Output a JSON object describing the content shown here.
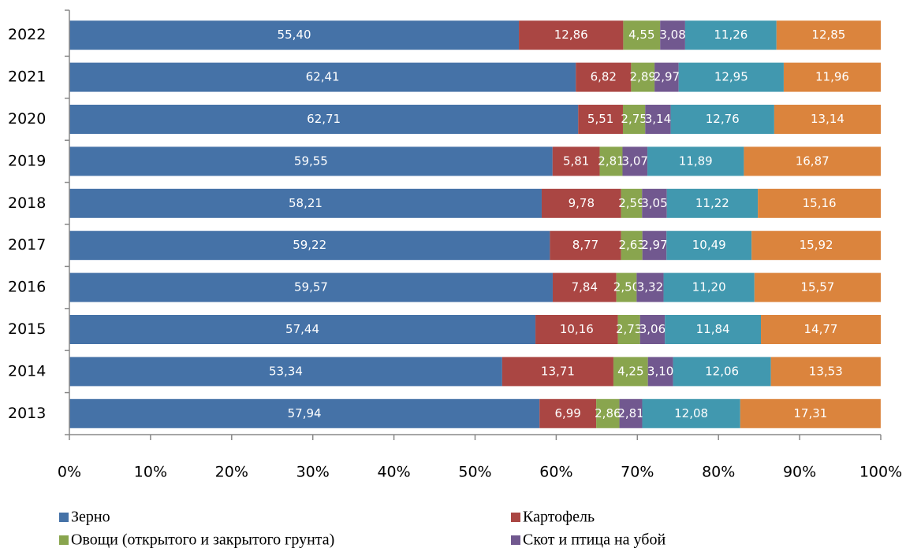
{
  "chart_data": {
    "type": "stacked_bar_horizontal",
    "categories": [
      "2022",
      "2021",
      "2020",
      "2019",
      "2018",
      "2017",
      "2016",
      "2015",
      "2014",
      "2013"
    ],
    "series": [
      {
        "name": "Зерно",
        "color": "#4572a7",
        "values": [
          55.4,
          62.41,
          62.71,
          59.55,
          58.21,
          59.22,
          59.57,
          57.44,
          53.34,
          57.94
        ],
        "value_labels": [
          "55,40",
          "62,41",
          "62,71",
          "59,55",
          "58,21",
          "59,22",
          "59,57",
          "57,44",
          "53,34",
          "57,94"
        ]
      },
      {
        "name": "Картофель",
        "color": "#aa4643",
        "values": [
          12.86,
          6.82,
          5.51,
          5.81,
          9.78,
          8.77,
          7.84,
          10.16,
          13.71,
          6.99
        ],
        "value_labels": [
          "12,86",
          "6,82",
          "5,51",
          "5,81",
          "9,78",
          "8,77",
          "7,84",
          "10,16",
          "13,71",
          "6,99"
        ]
      },
      {
        "name": "Овощи (открытого и закрытого грунта)",
        "color": "#89a54e",
        "values": [
          4.55,
          2.89,
          2.75,
          2.81,
          2.59,
          2.63,
          2.5,
          2.73,
          4.25,
          2.86
        ],
        "value_labels": [
          "4,55",
          "2,89",
          "2,75",
          "2,81",
          "2,59",
          "2,63",
          "2,50",
          "2,73",
          "4,25",
          "2,86"
        ]
      },
      {
        "name": "Скот и птица на убой",
        "color": "#71588f",
        "values": [
          3.08,
          2.97,
          3.14,
          3.07,
          3.05,
          2.97,
          3.32,
          3.06,
          3.1,
          2.81
        ],
        "value_labels": [
          "3,08",
          "2,97",
          "3,14",
          "3,07",
          "3,05",
          "2,97",
          "3,32",
          "3,06",
          "3,10",
          "2,81"
        ]
      },
      {
        "color": "#4198af",
        "values": [
          11.26,
          12.95,
          12.76,
          11.89,
          11.22,
          10.49,
          11.2,
          11.84,
          12.06,
          12.08
        ],
        "value_labels": [
          "11,26",
          "12,95",
          "12,76",
          "11,89",
          "11,22",
          "10,49",
          "11,20",
          "11,84",
          "12,06",
          "12,08"
        ]
      },
      {
        "color": "#db843d",
        "values": [
          12.85,
          11.96,
          13.14,
          16.87,
          15.16,
          15.92,
          15.57,
          14.77,
          13.53,
          17.31
        ],
        "value_labels": [
          "12,85",
          "11,96",
          "13,14",
          "16,87",
          "15,16",
          "15,92",
          "15,57",
          "14,77",
          "13,53",
          "17,31"
        ]
      }
    ],
    "xlim": [
      0,
      100
    ],
    "xticks": [
      {
        "value": 0,
        "label": "0%"
      },
      {
        "value": 10,
        "label": "10%"
      },
      {
        "value": 20,
        "label": "20%"
      },
      {
        "value": 30,
        "label": "30%"
      },
      {
        "value": 40,
        "label": "40%"
      },
      {
        "value": 50,
        "label": "50%"
      },
      {
        "value": 60,
        "label": "60%"
      },
      {
        "value": 70,
        "label": "70%"
      },
      {
        "value": 80,
        "label": "80%"
      },
      {
        "value": 90,
        "label": "90%"
      },
      {
        "value": 100,
        "label": "100%"
      }
    ],
    "grid": false,
    "legend": "bottom"
  }
}
